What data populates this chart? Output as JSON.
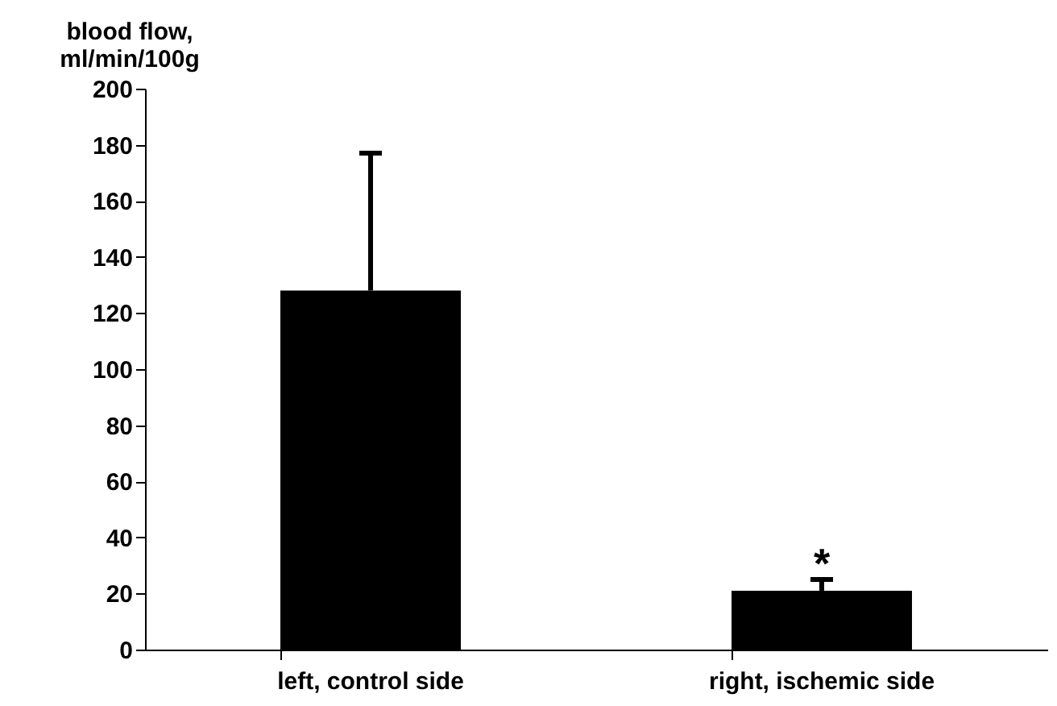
{
  "chart_data": {
    "type": "bar",
    "ylabel": "blood flow,\nml/min/100g",
    "categories": [
      "left, control side",
      "right, ischemic side"
    ],
    "values": [
      128,
      21
    ],
    "color": "#000000",
    "errors": [
      [
        128,
        177
      ],
      [
        21,
        25
      ]
    ],
    "ylim": [
      0,
      200
    ],
    "yticks": [
      0,
      20,
      40,
      60,
      80,
      100,
      120,
      140,
      160,
      180,
      200
    ],
    "grid": false,
    "annotations": [
      "*"
    ]
  }
}
